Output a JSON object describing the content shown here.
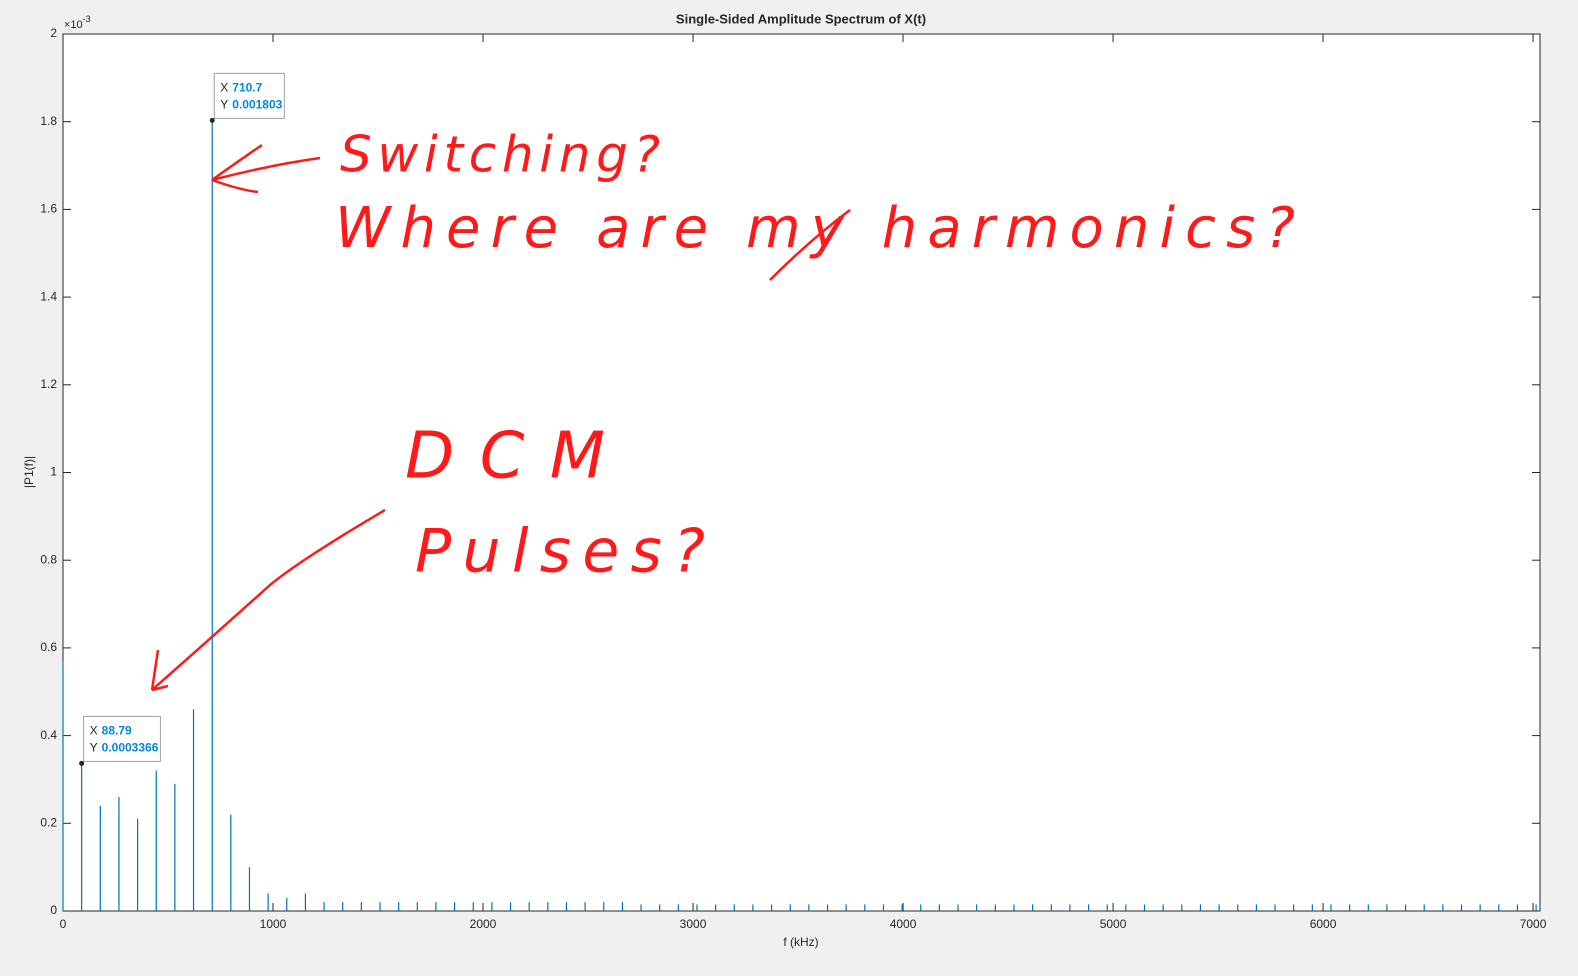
{
  "chart_data": {
    "type": "stem",
    "title": "Single-Sided Amplitude Spectrum of X(t)",
    "x_label": "f (kHz)",
    "y_label": "|P1(f)|",
    "y_exponent": {
      "base": "×10",
      "power": "-3"
    },
    "xlim": [
      0,
      7033
    ],
    "ylim": [
      0,
      0.002
    ],
    "xticks": [
      0,
      1000,
      2000,
      3000,
      4000,
      5000,
      6000,
      7000
    ],
    "yticks": [
      0,
      {
        "value": 0.0002,
        "label": "0.2"
      },
      {
        "value": 0.0004,
        "label": "0.4"
      },
      {
        "value": 0.0006,
        "label": "0.6"
      },
      {
        "value": 0.0008,
        "label": "0.8"
      },
      {
        "value": 0.001,
        "label": "1"
      },
      {
        "value": 0.0012,
        "label": "1.2"
      },
      {
        "value": 0.0014,
        "label": "1.4"
      },
      {
        "value": 0.0016,
        "label": "1.6"
      },
      {
        "value": 0.0018,
        "label": "1.8"
      },
      {
        "value": 0.002,
        "label": "2"
      }
    ],
    "grid": false,
    "color": "#0072bd",
    "x": [
      0,
      88.79,
      177.6,
      266.4,
      355.2,
      444.0,
      532.7,
      621.5,
      710.7,
      799.1,
      887.9,
      976.7,
      1065.5,
      1154.3,
      1243.1,
      1331.9,
      1420.6,
      1509.4,
      1598.2,
      1687.0,
      1775.8,
      1864.6,
      1953.4,
      2042.2,
      2131.0,
      2219.8,
      2308.5,
      2397.3,
      2486.1,
      2574.9,
      2663.7,
      2752.5,
      2841.3,
      2930.1,
      3018.9,
      3107.7,
      3196.4,
      3285.2,
      3374.0,
      3462.8,
      3551.6,
      3640.4,
      3729.2,
      3818.0,
      3906.8,
      3995.6,
      4084.3,
      4173.1,
      4261.9,
      4350.7,
      4439.5,
      4528.3,
      4617.1,
      4705.9,
      4794.7,
      4883.5,
      4972.2,
      5061.0,
      5149.8,
      5238.6,
      5327.4,
      5416.2,
      5505.0,
      5593.8,
      5682.6,
      5771.4,
      5860.1,
      5948.9,
      6037.7,
      6126.5,
      6215.3,
      6304.1,
      6392.9,
      6481.7,
      6570.5,
      6659.3,
      6748.0,
      6836.8,
      6925.6,
      7014.4
    ],
    "values": [
      0.00057,
      0.0003366,
      0.00024,
      0.00026,
      0.00021,
      0.00032,
      0.00029,
      0.00046,
      0.001803,
      0.00022,
      0.0001,
      4e-05,
      3e-05,
      4e-05,
      2e-05,
      2e-05,
      2e-05,
      2e-05,
      2e-05,
      2e-05,
      2e-05,
      2e-05,
      2e-05,
      2e-05,
      2e-05,
      2e-05,
      2e-05,
      2e-05,
      2e-05,
      2e-05,
      2e-05,
      1.5e-05,
      1.5e-05,
      1.5e-05,
      1.5e-05,
      1.5e-05,
      1.5e-05,
      1.5e-05,
      1.5e-05,
      1.5e-05,
      1.5e-05,
      1.5e-05,
      1.5e-05,
      1.5e-05,
      1.5e-05,
      1.5e-05,
      1.5e-05,
      1.5e-05,
      1.5e-05,
      1.5e-05,
      1.5e-05,
      1.5e-05,
      1.5e-05,
      1.5e-05,
      1.5e-05,
      1.5e-05,
      1.5e-05,
      1.5e-05,
      1.5e-05,
      1.5e-05,
      1.5e-05,
      1.5e-05,
      1.5e-05,
      1.5e-05,
      1.5e-05,
      1.5e-05,
      1.5e-05,
      1.5e-05,
      1.5e-05,
      1.5e-05,
      1.5e-05,
      1.5e-05,
      1.5e-05,
      1.5e-05,
      1.5e-05,
      1.5e-05,
      1.5e-05,
      1.5e-05,
      1.5e-05,
      1.5e-05
    ],
    "data_tips": [
      {
        "x_label": "X",
        "x": 710.7,
        "y_label": "Y",
        "y": 0.001803
      },
      {
        "x_label": "X",
        "x": 88.79,
        "y_label": "Y",
        "y": 0.0003366
      }
    ],
    "annotations": [
      "Switching?",
      "Where are my harmonics?",
      "DCM",
      "Pulses?"
    ]
  }
}
